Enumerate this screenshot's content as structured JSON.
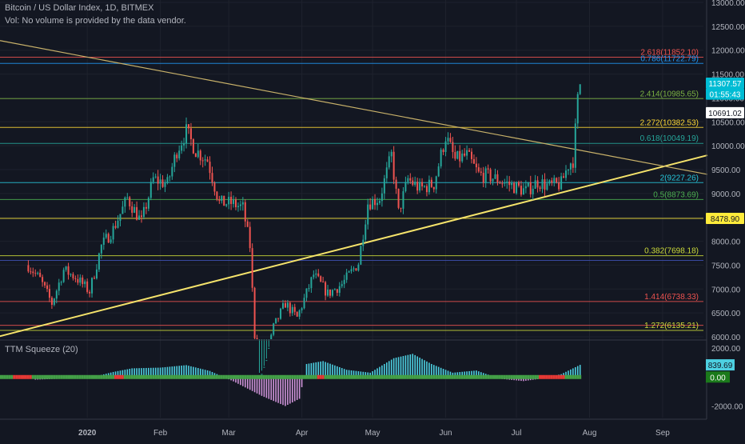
{
  "header": {
    "symbol": "Bitcoin / US Dollar Index, 1D, BITMEX",
    "vol_note": "Vol: No volume is provided by the data vendor."
  },
  "indicator": {
    "label": "TTM Squeeze (20)"
  },
  "colors": {
    "background": "#131722",
    "grid": "#1e222d",
    "up": "#26a69a",
    "down": "#ef5350",
    "trend_up": "#f5e36b",
    "trend_down": "#c9b26a",
    "hist_up": "#4dd0e1",
    "hist_down": "#ce93d8",
    "dot_on": "#e53935",
    "dot_off": "#43a047"
  },
  "chart_data": [
    {
      "type": "candlestick",
      "title": "Bitcoin / US Dollar Index, 1D, BITMEX",
      "x_tick_labels": [
        "2020",
        "Feb",
        "Mar",
        "Apr",
        "May",
        "Jun",
        "Jul",
        "Aug",
        "Sep"
      ],
      "y_tick_labels": [
        "6000.00",
        "6500.00",
        "7000.00",
        "7500.00",
        "8000.00",
        "8500.00",
        "9000.00",
        "9500.00",
        "10000.00",
        "10500.00",
        "11000.00",
        "11500.00",
        "12000.00",
        "12500.00",
        "13000.00"
      ],
      "ylim": [
        5950,
        13050
      ],
      "close_points": [
        {
          "date": "2019-12-07",
          "close": 7500
        },
        {
          "date": "2019-12-12",
          "close": 7200
        },
        {
          "date": "2019-12-17",
          "close": 6700
        },
        {
          "date": "2019-12-22",
          "close": 7400
        },
        {
          "date": "2019-12-27",
          "close": 7250
        },
        {
          "date": "2020-01-02",
          "close": 6950
        },
        {
          "date": "2020-01-07",
          "close": 7900
        },
        {
          "date": "2020-01-12",
          "close": 8250
        },
        {
          "date": "2020-01-18",
          "close": 8900
        },
        {
          "date": "2020-01-24",
          "close": 8400
        },
        {
          "date": "2020-01-29",
          "close": 9300
        },
        {
          "date": "2020-02-04",
          "close": 9200
        },
        {
          "date": "2020-02-08",
          "close": 9900
        },
        {
          "date": "2020-02-12",
          "close": 10300
        },
        {
          "date": "2020-02-16",
          "close": 9900
        },
        {
          "date": "2020-02-21",
          "close": 9700
        },
        {
          "date": "2020-02-26",
          "close": 8800
        },
        {
          "date": "2020-03-02",
          "close": 8800
        },
        {
          "date": "2020-03-07",
          "close": 8700
        },
        {
          "date": "2020-03-10",
          "close": 7900
        },
        {
          "date": "2020-03-13",
          "close": 5100
        },
        {
          "date": "2020-03-16",
          "close": 5300
        },
        {
          "date": "2020-03-20",
          "close": 6200
        },
        {
          "date": "2020-03-25",
          "close": 6700
        },
        {
          "date": "2020-03-30",
          "close": 6400
        },
        {
          "date": "2020-04-06",
          "close": 7300
        },
        {
          "date": "2020-04-12",
          "close": 6900
        },
        {
          "date": "2020-04-18",
          "close": 7100
        },
        {
          "date": "2020-04-25",
          "close": 7550
        },
        {
          "date": "2020-04-29",
          "close": 8800
        },
        {
          "date": "2020-05-04",
          "close": 8900
        },
        {
          "date": "2020-05-09",
          "close": 9800
        },
        {
          "date": "2020-05-12",
          "close": 8600
        },
        {
          "date": "2020-05-16",
          "close": 9300
        },
        {
          "date": "2020-05-21",
          "close": 9100
        },
        {
          "date": "2020-05-27",
          "close": 9200
        },
        {
          "date": "2020-06-01",
          "close": 10200
        },
        {
          "date": "2020-06-05",
          "close": 9700
        },
        {
          "date": "2020-06-10",
          "close": 9800
        },
        {
          "date": "2020-06-15",
          "close": 9400
        },
        {
          "date": "2020-06-20",
          "close": 9350
        },
        {
          "date": "2020-06-25",
          "close": 9250
        },
        {
          "date": "2020-06-30",
          "close": 9150
        },
        {
          "date": "2020-07-05",
          "close": 9050
        },
        {
          "date": "2020-07-10",
          "close": 9250
        },
        {
          "date": "2020-07-15",
          "close": 9150
        },
        {
          "date": "2020-07-20",
          "close": 9200
        },
        {
          "date": "2020-07-23",
          "close": 9600
        },
        {
          "date": "2020-07-25",
          "close": 9700
        },
        {
          "date": "2020-07-27",
          "close": 10950
        },
        {
          "date": "2020-07-28",
          "close": 11300
        }
      ],
      "levels": [
        {
          "label": "2.618(11852.10)",
          "value": 11852.1,
          "color": "#ef5350"
        },
        {
          "label": "0.786(11722.79)",
          "value": 11722.79,
          "color": "#2196f3"
        },
        {
          "label": "2.414(10985.65)",
          "value": 10985.65,
          "color": "#7cb342"
        },
        {
          "label": "2.272(10382.53)",
          "value": 10382.53,
          "color": "#fdd835"
        },
        {
          "label": "0.618(10049.19)",
          "value": 10049.19,
          "color": "#26a69a"
        },
        {
          "label": "2(9227.26)",
          "value": 9227.26,
          "color": "#26c6da"
        },
        {
          "label": "0.5(8873.69)",
          "value": 8873.69,
          "color": "#4caf50"
        },
        {
          "label": "",
          "value": 8478.9,
          "color": "#ffeb3b"
        },
        {
          "label": "0.382(7698.18)",
          "value": 7698.18,
          "color": "#cddc39"
        },
        {
          "label": "",
          "value": 7600,
          "color": "#3f51b5"
        },
        {
          "label": "1.414(6738.33)",
          "value": 6738.33,
          "color": "#ef5350"
        },
        {
          "label": "",
          "value": 6240,
          "color": "#ef5350"
        },
        {
          "label": "1.272(6135.21)",
          "value": 6135.21,
          "color": "#cddc39"
        }
      ],
      "price_tags": [
        {
          "text": "11307.57",
          "value": 11307.57,
          "bg": "#00bcd4",
          "fg": "#ffffff"
        },
        {
          "text": "01:55:43",
          "value": 11080,
          "bg": "#00bcd4",
          "fg": "#ffffff"
        },
        {
          "text": "10691.02",
          "value": 10691.02,
          "bg": "#ffffff",
          "fg": "#131722"
        },
        {
          "text": "8478.90",
          "value": 8478.9,
          "bg": "#ffeb3b",
          "fg": "#131722"
        }
      ],
      "trendlines": [
        {
          "name": "",
          "from": {
            "date": "2019-11-20",
            "price": 5950
          },
          "to": {
            "date": "2020-09-20",
            "price": 9800
          }
        },
        {
          "name": "",
          "from": {
            "date": "2019-11-25",
            "price": 12200
          },
          "to": {
            "date": "2020-09-20",
            "price": 9400
          }
        }
      ]
    },
    {
      "type": "bar",
      "title": "TTM Squeeze (20)",
      "y_tick_labels": [
        "2000.00",
        "0.00",
        "-2000.00"
      ],
      "ylim": [
        -2800,
        2500
      ],
      "last_value_label": "839.69",
      "zero_label": "0.00",
      "momentum": [
        {
          "date": "2019-12-10",
          "value": -180
        },
        {
          "date": "2019-12-20",
          "value": -120
        },
        {
          "date": "2020-01-01",
          "value": -100
        },
        {
          "date": "2020-01-12",
          "value": 350
        },
        {
          "date": "2020-01-20",
          "value": 600
        },
        {
          "date": "2020-02-01",
          "value": 650
        },
        {
          "date": "2020-02-12",
          "value": 820
        },
        {
          "date": "2020-02-22",
          "value": 420
        },
        {
          "date": "2020-03-03",
          "value": -300
        },
        {
          "date": "2020-03-15",
          "value": -1300
        },
        {
          "date": "2020-03-25",
          "value": -2000
        },
        {
          "date": "2020-03-31",
          "value": -1500
        },
        {
          "date": "2020-04-03",
          "value": 900
        },
        {
          "date": "2020-04-10",
          "value": 1100
        },
        {
          "date": "2020-04-20",
          "value": 500
        },
        {
          "date": "2020-04-30",
          "value": 300
        },
        {
          "date": "2020-05-10",
          "value": 1300
        },
        {
          "date": "2020-05-18",
          "value": 1600
        },
        {
          "date": "2020-05-26",
          "value": 900
        },
        {
          "date": "2020-06-04",
          "value": 300
        },
        {
          "date": "2020-06-14",
          "value": 450
        },
        {
          "date": "2020-06-24",
          "value": -120
        },
        {
          "date": "2020-07-04",
          "value": -280
        },
        {
          "date": "2020-07-12",
          "value": -100
        },
        {
          "date": "2020-07-20",
          "value": 200
        },
        {
          "date": "2020-07-28",
          "value": 839.69
        }
      ],
      "squeeze_on_ranges": [
        {
          "from": "2019-12-01",
          "to": "2019-12-08"
        },
        {
          "from": "2020-01-13",
          "to": "2020-01-16"
        },
        {
          "from": "2020-04-08",
          "to": "2020-04-10"
        },
        {
          "from": "2020-07-11",
          "to": "2020-07-21"
        }
      ]
    }
  ]
}
